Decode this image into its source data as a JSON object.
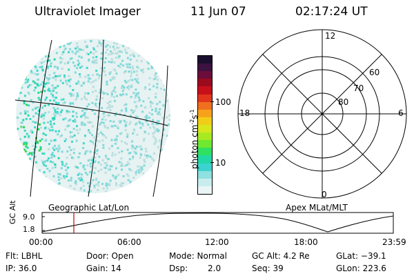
{
  "header": {
    "title": "Ultraviolet Imager",
    "date": "11 Jun 07",
    "time": "02:17:24 UT"
  },
  "left_panel": {
    "caption": "Geographic Lat/Lon",
    "grid_color": "#000000",
    "dot_colors": [
      "#b8dede",
      "#7fd9d9",
      "#3cd8c8",
      "#21d6a6",
      "#2bd84f"
    ]
  },
  "colorbar": {
    "unit_label": "photon cm",
    "unit_exp1": "-2",
    "unit_mid": "s",
    "unit_exp2": "-1",
    "ticks": [
      "100",
      "10"
    ],
    "colors": [
      "#1a0f2e",
      "#3b1240",
      "#6b0d3a",
      "#9c0a1e",
      "#c7101a",
      "#e2361c",
      "#f07020",
      "#f6a31b",
      "#f2cd18",
      "#d8e61c",
      "#a7ea22",
      "#6fe830",
      "#30e060",
      "#21d8a6",
      "#3cd3cf",
      "#8fe0e0",
      "#c9eded",
      "#eaf6f6"
    ]
  },
  "right_panel": {
    "caption": "Apex MLat/MLT",
    "mlt_labels": [
      "12",
      "18",
      "6",
      "0"
    ],
    "mlat_labels": [
      "60",
      "70",
      "80"
    ]
  },
  "altitude_plot": {
    "ylabel": "GC Alt",
    "yticks": [
      "9.0",
      "1.8"
    ],
    "xticks": [
      "00:00",
      "06:00",
      "12:00",
      "18:00",
      "23:59"
    ],
    "marker_color": "#cc0000"
  },
  "info": {
    "filter": "Flt: LBHL",
    "door": "Door: Open",
    "mode": "Mode: Normal",
    "gc_alt": "GC Alt: 4.2 Re",
    "glat": "GLat: −39.1",
    "ip": "IP: 36.0",
    "gain": "Gain: 14",
    "dsp_label": "Dsp:",
    "dsp_value": "2.0",
    "seq": "Seq: 39",
    "glon": "GLon: 223.6"
  }
}
